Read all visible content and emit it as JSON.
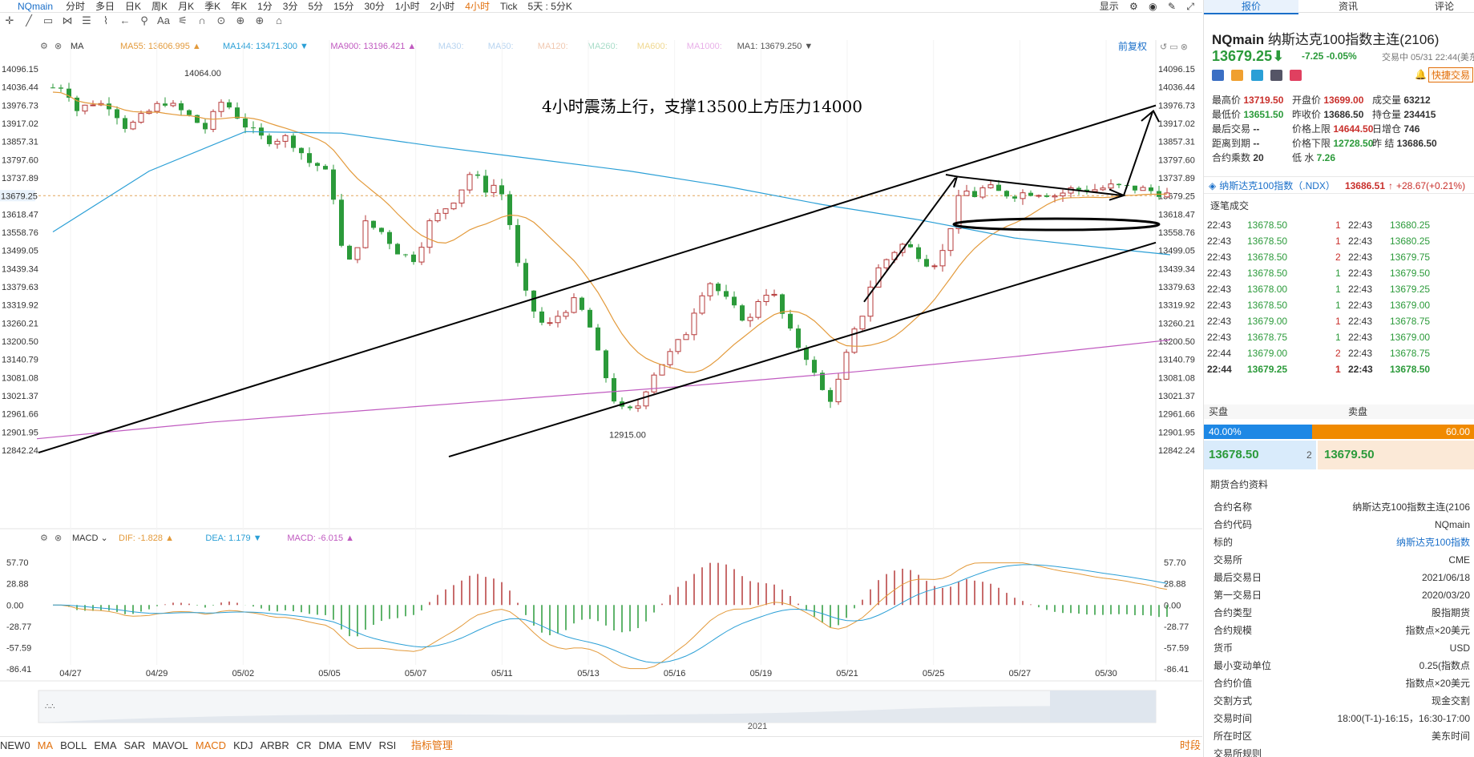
{
  "toolbar": {
    "symbol": "NQmain",
    "timeframes": [
      "分时",
      "多日",
      "日K",
      "周K",
      "月K",
      "季K",
      "年K",
      "1分",
      "3分",
      "5分",
      "15分",
      "30分",
      "1小时",
      "2小时",
      "4小时",
      "Tick",
      "5天 : 5分K"
    ],
    "active_timeframe": "4小时",
    "right": [
      "显示"
    ]
  },
  "drawbar": {
    "items": [
      "✛",
      "╱",
      "▭",
      "⋈",
      "☰",
      "⌇",
      "←",
      "⚲",
      "Aa",
      "⚟",
      "∩",
      "⊙",
      "⊕",
      "⊕",
      "⌂"
    ]
  },
  "chart_data": [
    {
      "type": "candlestick",
      "title": "",
      "annotation": "4小时震荡上行，支撑13500上方压力14000",
      "y_ticks": [
        "14096.15",
        "14036.44",
        "13976.73",
        "13917.02",
        "13857.31",
        "13797.60",
        "13737.89",
        "13618.47",
        "13558.76",
        "13499.05",
        "13439.34",
        "13379.63",
        "13319.92",
        "13260.21",
        "13200.50",
        "13140.79",
        "13081.08",
        "13021.37",
        "12961.66",
        "12901.95",
        "12842.24"
      ],
      "ylim": [
        12842.24,
        14096.15
      ],
      "current_price": "13679.25",
      "high_label": "14064.00",
      "low_label": "12915.00",
      "x_ticks": [
        "04/27",
        "04/29",
        "05/02",
        "05/05",
        "05/07",
        "05/11",
        "05/13",
        "05/16",
        "05/19",
        "05/21",
        "05/25",
        "05/27",
        "05/30"
      ],
      "ma_legend": [
        {
          "label": "MA",
          "value": "",
          "color": "#333333"
        },
        {
          "label": "MA55: ",
          "value": "13606.995",
          "color": "#e39a3b",
          "arrow": "▲"
        },
        {
          "label": "MA144: ",
          "value": "13471.300",
          "color": "#2a9fd6",
          "arrow": "▼"
        },
        {
          "label": "MA900: ",
          "value": "13196.421",
          "color": "#c05ac0",
          "arrow": "▲"
        },
        {
          "label": "MA30:",
          "value": "",
          "color": "#b8d4f0"
        },
        {
          "label": "MA60:",
          "value": "",
          "color": "#b8d4f0"
        },
        {
          "label": "MA120:",
          "value": "",
          "color": "#f0c8b0"
        },
        {
          "label": "MA260:",
          "value": "",
          "color": "#a8dcc8"
        },
        {
          "label": "MA600:",
          "value": "",
          "color": "#f0d890"
        },
        {
          "label": "MA1000:",
          "value": "",
          "color": "#e8b0e8"
        },
        {
          "label": "MA1: ",
          "value": "13679.250",
          "color": "#555555",
          "arrow": "▼"
        }
      ],
      "adjust_label": "前复权",
      "year_label": "2021"
    },
    {
      "type": "bar",
      "title": "MACD",
      "legend": [
        {
          "label": "DIF: ",
          "value": "-1.828",
          "color": "#e39a3b",
          "arrow": "▲"
        },
        {
          "label": "DEA: ",
          "value": "1.179",
          "color": "#2a9fd6",
          "arrow": "▼"
        },
        {
          "label": "MACD: ",
          "value": "-6.015",
          "color": "#c05ac0",
          "arrow": "▲"
        }
      ],
      "y_ticks": [
        "57.70",
        "28.88",
        "0.00",
        "-28.77",
        "-57.59",
        "-86.41"
      ],
      "ylim": [
        -86.41,
        57.7
      ]
    }
  ],
  "bottombar": {
    "indicators": [
      "NEW0",
      "MA",
      "BOLL",
      "EMA",
      "SAR",
      "MAVOL",
      "MACD",
      "KDJ",
      "ARBR",
      "CR",
      "DMA",
      "EMV",
      "RSI"
    ],
    "active": [
      "MA",
      "MACD"
    ],
    "manager": "指标管理",
    "time": "时段"
  },
  "panel": {
    "tabs": [
      "报价",
      "资讯",
      "评论"
    ],
    "code": "NQmain",
    "name": "纳斯达克100指数主连(2106)",
    "price": "13679.25",
    "arrow": "⬇",
    "change": "-7.25",
    "change_pct": "-0.05%",
    "status": "交易中 05/31 22:44(美东",
    "quick_trade": "快捷交易",
    "stats": [
      [
        {
          "k": "最高价",
          "v": "13719.50",
          "c": "red"
        },
        {
          "k": "开盘价",
          "v": "13699.00",
          "c": "red"
        },
        {
          "k": "成交量",
          "v": "63212",
          "c": "black"
        }
      ],
      [
        {
          "k": "最低价",
          "v": "13651.50",
          "c": "green"
        },
        {
          "k": "昨收价",
          "v": "13686.50",
          "c": "black"
        },
        {
          "k": "持仓量",
          "v": "234415",
          "c": "black"
        }
      ],
      [
        {
          "k": "最后交易",
          "v": "--",
          "c": "black"
        },
        {
          "k": "价格上限",
          "v": "14644.50",
          "c": "red"
        },
        {
          "k": "日增仓",
          "v": "746",
          "c": "black"
        }
      ],
      [
        {
          "k": "距离到期",
          "v": "--",
          "c": "black"
        },
        {
          "k": "价格下限",
          "v": "12728.50",
          "c": "green"
        },
        {
          "k": "昨  结",
          "v": "13686.50",
          "c": "black"
        }
      ],
      [
        {
          "k": "合约乘数",
          "v": "20",
          "c": "black"
        },
        {
          "k": "低  水",
          "v": "7.26",
          "c": "green"
        },
        {
          "k": "",
          "v": "",
          "c": "black"
        }
      ]
    ],
    "index": {
      "name": "纳斯达克100指数（.NDX）",
      "price": "13686.51",
      "arrow": "↑",
      "change": "+28.67(+0.21%)"
    },
    "trades_header": "逐笔成交",
    "trades": [
      {
        "t1": "22:43",
        "p1": "13678.50",
        "c1": "green",
        "q": "1",
        "qc": "red",
        "t2": "22:43",
        "p2": "13680.25",
        "c2": "green"
      },
      {
        "t1": "22:43",
        "p1": "13678.50",
        "c1": "green",
        "q": "1",
        "qc": "red",
        "t2": "22:43",
        "p2": "13680.25",
        "c2": "green"
      },
      {
        "t1": "22:43",
        "p1": "13678.50",
        "c1": "green",
        "q": "2",
        "qc": "red",
        "t2": "22:43",
        "p2": "13679.75",
        "c2": "green"
      },
      {
        "t1": "22:43",
        "p1": "13678.50",
        "c1": "green",
        "q": "1",
        "qc": "green",
        "t2": "22:43",
        "p2": "13679.50",
        "c2": "green"
      },
      {
        "t1": "22:43",
        "p1": "13678.00",
        "c1": "green",
        "q": "1",
        "qc": "green",
        "t2": "22:43",
        "p2": "13679.25",
        "c2": "green"
      },
      {
        "t1": "22:43",
        "p1": "13678.50",
        "c1": "green",
        "q": "1",
        "qc": "green",
        "t2": "22:43",
        "p2": "13679.00",
        "c2": "green"
      },
      {
        "t1": "22:43",
        "p1": "13679.00",
        "c1": "green",
        "q": "1",
        "qc": "red",
        "t2": "22:43",
        "p2": "13678.75",
        "c2": "green"
      },
      {
        "t1": "22:43",
        "p1": "13678.75",
        "c1": "green",
        "q": "1",
        "qc": "green",
        "t2": "22:43",
        "p2": "13679.00",
        "c2": "green"
      },
      {
        "t1": "22:44",
        "p1": "13679.00",
        "c1": "green",
        "q": "2",
        "qc": "red",
        "t2": "22:43",
        "p2": "13678.75",
        "c2": "green"
      },
      {
        "t1": "22:44",
        "p1": "13679.25",
        "c1": "green",
        "q": "1",
        "qc": "red",
        "t2": "22:43",
        "p2": "13678.50",
        "c2": "green"
      }
    ],
    "book": {
      "buy_label": "买盘",
      "sell_label": "卖盘",
      "buy_pct": "40.00%",
      "sell_pct": "60.00",
      "buy_share": 0.4,
      "bid": "13678.50",
      "bid_qty": "2",
      "ask": "13679.50"
    },
    "spec_header": "期货合约资料",
    "spec": [
      {
        "k": "合约名称",
        "v": "纳斯达克100指数主连(2106"
      },
      {
        "k": "合约代码",
        "v": "NQmain"
      },
      {
        "k": "标的",
        "v": "纳斯达克100指数",
        "link": true
      },
      {
        "k": "交易所",
        "v": "CME"
      },
      {
        "k": "最后交易日",
        "v": "2021/06/18"
      },
      {
        "k": "第一交易日",
        "v": "2020/03/20"
      },
      {
        "k": "合约类型",
        "v": "股指期货"
      },
      {
        "k": "合约规模",
        "v": "指数点×20美元"
      },
      {
        "k": "货币",
        "v": "USD"
      },
      {
        "k": "最小变动单位",
        "v": "0.25(指数点"
      },
      {
        "k": "合约价值",
        "v": "指数点×20美元"
      },
      {
        "k": "交割方式",
        "v": "现金交割"
      },
      {
        "k": "交易时间",
        "v": "18:00(T-1)-16:15，16:30-17:00"
      },
      {
        "k": "所在时区",
        "v": "美东时间"
      },
      {
        "k": "交易所规则",
        "v": ""
      }
    ]
  }
}
